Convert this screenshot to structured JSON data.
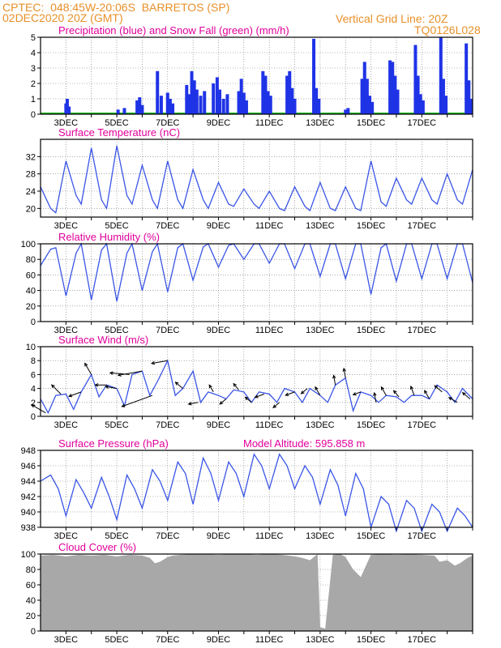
{
  "header": {
    "line1": "CPTEC:  048:45W-20:06S  BARRETOS (SP)",
    "line2": "02DEC2020 20Z (GMT)",
    "grid_note": "Vertical Grid Line: 20Z",
    "run_code": "TQ0126L028"
  },
  "colors": {
    "header_text": "#e8902a",
    "panel_title": "#e0009a",
    "series_line": "#3a55e6",
    "precip_bar": "#1f33e6",
    "snow_line": "#12b312",
    "cloud_fill": "#a8a8a8",
    "arrow": "#000000"
  },
  "chart_data": [
    {
      "id": "precip",
      "type": "bar",
      "title": "Precipitation (blue) and Snow Fall (green) (mm/h)",
      "ylim": [
        0,
        5
      ],
      "yticks": [
        0,
        1,
        2,
        3,
        4,
        5
      ],
      "x_unit": "days from 02DEC2020 20Z",
      "x_labels": [
        "3DEC",
        "5DEC",
        "7DEC",
        "9DEC",
        "11DEC",
        "13DEC",
        "15DEC",
        "17DEC"
      ],
      "snowfall": 0,
      "events": [
        {
          "day": 1.0,
          "value": 0.7
        },
        {
          "day": 1.05,
          "value": 1.0
        },
        {
          "day": 1.12,
          "value": 0.5
        },
        {
          "day": 3.05,
          "value": 0.3
        },
        {
          "day": 3.3,
          "value": 0.4
        },
        {
          "day": 3.8,
          "value": 0.9
        },
        {
          "day": 3.9,
          "value": 1.1
        },
        {
          "day": 4.0,
          "value": 0.6
        },
        {
          "day": 4.6,
          "value": 2.8
        },
        {
          "day": 4.75,
          "value": 1.2
        },
        {
          "day": 5.0,
          "value": 1.4
        },
        {
          "day": 5.1,
          "value": 1.0
        },
        {
          "day": 5.2,
          "value": 0.7
        },
        {
          "day": 5.75,
          "value": 1.9
        },
        {
          "day": 5.85,
          "value": 1.3
        },
        {
          "day": 5.95,
          "value": 2.8
        },
        {
          "day": 6.05,
          "value": 2.2
        },
        {
          "day": 6.15,
          "value": 1.6
        },
        {
          "day": 6.3,
          "value": 1.2
        },
        {
          "day": 6.45,
          "value": 1.5
        },
        {
          "day": 6.8,
          "value": 2.0
        },
        {
          "day": 6.95,
          "value": 2.4
        },
        {
          "day": 7.05,
          "value": 1.6
        },
        {
          "day": 7.2,
          "value": 1.0
        },
        {
          "day": 7.35,
          "value": 1.3
        },
        {
          "day": 7.8,
          "value": 1.5
        },
        {
          "day": 7.9,
          "value": 2.3
        },
        {
          "day": 8.0,
          "value": 1.4
        },
        {
          "day": 8.1,
          "value": 0.9
        },
        {
          "day": 8.75,
          "value": 2.8
        },
        {
          "day": 8.85,
          "value": 2.5
        },
        {
          "day": 8.95,
          "value": 1.5
        },
        {
          "day": 9.05,
          "value": 1.2
        },
        {
          "day": 9.7,
          "value": 2.5
        },
        {
          "day": 9.8,
          "value": 2.8
        },
        {
          "day": 9.9,
          "value": 1.7
        },
        {
          "day": 10.0,
          "value": 1.0
        },
        {
          "day": 10.75,
          "value": 4.9
        },
        {
          "day": 10.85,
          "value": 1.7
        },
        {
          "day": 10.95,
          "value": 1.0
        },
        {
          "day": 12.0,
          "value": 0.3
        },
        {
          "day": 12.1,
          "value": 0.4
        },
        {
          "day": 12.65,
          "value": 2.3
        },
        {
          "day": 12.75,
          "value": 3.4
        },
        {
          "day": 12.85,
          "value": 2.3
        },
        {
          "day": 12.95,
          "value": 1.2
        },
        {
          "day": 13.05,
          "value": 0.8
        },
        {
          "day": 13.75,
          "value": 3.5
        },
        {
          "day": 13.85,
          "value": 3.4
        },
        {
          "day": 13.95,
          "value": 2.5
        },
        {
          "day": 14.05,
          "value": 1.6
        },
        {
          "day": 14.75,
          "value": 4.5
        },
        {
          "day": 14.85,
          "value": 2.5
        },
        {
          "day": 14.95,
          "value": 1.3
        },
        {
          "day": 15.05,
          "value": 0.9
        },
        {
          "day": 15.75,
          "value": 5.0
        },
        {
          "day": 15.85,
          "value": 2.3
        },
        {
          "day": 15.95,
          "value": 1.2
        },
        {
          "day": 16.75,
          "value": 4.6
        },
        {
          "day": 16.85,
          "value": 2.2
        },
        {
          "day": 16.95,
          "value": 1.0
        }
      ]
    },
    {
      "id": "temperature",
      "type": "line",
      "title": "Surface Temperature (nC)",
      "ylim": [
        18,
        36
      ],
      "yticks": [
        20,
        24,
        28,
        32
      ],
      "x_unit": "days from 02DEC2020 20Z",
      "x_labels": [
        "3DEC",
        "5DEC",
        "7DEC",
        "9DEC",
        "11DEC",
        "13DEC",
        "15DEC",
        "17DEC"
      ],
      "x": [
        0.0,
        0.4,
        0.6,
        1.0,
        1.4,
        1.6,
        2.0,
        2.4,
        2.6,
        3.0,
        3.4,
        3.6,
        4.0,
        4.4,
        4.6,
        5.0,
        5.4,
        5.6,
        6.0,
        6.4,
        6.6,
        7.0,
        7.4,
        7.6,
        8.0,
        8.4,
        8.6,
        9.0,
        9.4,
        9.6,
        10.0,
        10.4,
        10.6,
        11.0,
        11.4,
        11.6,
        12.0,
        12.4,
        12.6,
        13.0,
        13.4,
        13.6,
        14.0,
        14.4,
        14.6,
        15.0,
        15.4,
        15.6,
        16.0,
        16.4,
        16.6,
        17.0
      ],
      "y": [
        25,
        20,
        19,
        31,
        23,
        21,
        34,
        22,
        20,
        34.5,
        23,
        21,
        30,
        22,
        20,
        31,
        22,
        20,
        29,
        22,
        20,
        26,
        21,
        20.5,
        24.5,
        21,
        20,
        24,
        20,
        19.5,
        25,
        20.5,
        19.5,
        26,
        20,
        19.5,
        25,
        20,
        19.5,
        31,
        21.5,
        20.5,
        27,
        22,
        21,
        27,
        22,
        21,
        28,
        22,
        21,
        29
      ]
    },
    {
      "id": "humidity",
      "type": "line",
      "title": "Relative Humidity (%)",
      "ylim": [
        0,
        100
      ],
      "yticks": [
        0,
        20,
        40,
        60,
        80,
        100
      ],
      "x_unit": "days from 02DEC2020 20Z",
      "x_labels": [
        "3DEC",
        "5DEC",
        "7DEC",
        "9DEC",
        "11DEC",
        "13DEC",
        "15DEC",
        "17DEC"
      ],
      "x": [
        0.0,
        0.4,
        0.6,
        1.0,
        1.4,
        1.6,
        2.0,
        2.4,
        2.6,
        3.0,
        3.4,
        3.6,
        4.0,
        4.4,
        4.6,
        5.0,
        5.4,
        5.6,
        6.0,
        6.4,
        6.6,
        7.0,
        7.4,
        7.6,
        8.0,
        8.4,
        8.6,
        9.0,
        9.4,
        9.6,
        10.0,
        10.4,
        10.6,
        11.0,
        11.4,
        11.6,
        12.0,
        12.4,
        12.6,
        13.0,
        13.4,
        13.6,
        14.0,
        14.4,
        14.6,
        15.0,
        15.4,
        15.6,
        16.0,
        16.4,
        16.6,
        17.0
      ],
      "y": [
        72,
        93,
        95,
        33,
        88,
        100,
        28,
        92,
        100,
        26,
        88,
        100,
        40,
        90,
        100,
        38,
        95,
        100,
        53,
        96,
        100,
        70,
        98,
        100,
        80,
        100,
        100,
        75,
        100,
        100,
        68,
        100,
        100,
        58,
        100,
        100,
        55,
        100,
        100,
        35,
        95,
        100,
        52,
        100,
        100,
        55,
        100,
        100,
        55,
        100,
        100,
        50
      ]
    },
    {
      "id": "wind",
      "type": "line",
      "title": "Surface Wind (m/s)",
      "ylim": [
        0,
        10
      ],
      "yticks": [
        0,
        2,
        4,
        6,
        8,
        10
      ],
      "x_unit": "days from 02DEC2020 20Z",
      "x_labels": [
        "3DEC",
        "5DEC",
        "7DEC",
        "9DEC",
        "11DEC",
        "13DEC",
        "15DEC",
        "17DEC"
      ],
      "x": [
        0.0,
        0.3,
        0.6,
        1.0,
        1.3,
        1.6,
        2.0,
        2.3,
        2.6,
        3.0,
        3.3,
        3.6,
        4.0,
        4.3,
        4.6,
        5.0,
        5.3,
        5.6,
        6.0,
        6.3,
        6.6,
        7.0,
        7.3,
        7.6,
        8.0,
        8.3,
        8.6,
        9.0,
        9.3,
        9.6,
        10.0,
        10.3,
        10.6,
        11.0,
        11.3,
        11.6,
        12.0,
        12.3,
        12.6,
        13.0,
        13.3,
        13.6,
        14.0,
        14.3,
        14.6,
        15.0,
        15.3,
        15.6,
        16.0,
        16.3,
        16.6,
        17.0
      ],
      "y": [
        2.5,
        0.5,
        3.0,
        3.2,
        1.0,
        3.5,
        6.0,
        2.8,
        4.5,
        4.0,
        1.5,
        6.0,
        6.5,
        3.0,
        5.0,
        8.0,
        3.0,
        4.0,
        6.5,
        2.0,
        3.5,
        3.0,
        2.5,
        3.8,
        3.5,
        2.0,
        3.5,
        3.2,
        2.0,
        4.0,
        3.5,
        2.0,
        4.0,
        3.0,
        2.0,
        4.5,
        5.5,
        0.8,
        3.5,
        3.0,
        2.0,
        3.0,
        2.8,
        2.0,
        3.0,
        3.0,
        2.5,
        4.5,
        3.5,
        2.0,
        4.0,
        2.5
      ],
      "arrows": [
        {
          "day": 0.2,
          "angle": -150,
          "len": 20
        },
        {
          "day": 0.8,
          "angle": -135,
          "len": 16
        },
        {
          "day": 1.6,
          "angle": 160,
          "len": 16
        },
        {
          "day": 2.0,
          "angle": -120,
          "len": 16
        },
        {
          "day": 2.6,
          "angle": 180,
          "len": 14
        },
        {
          "day": 3.0,
          "angle": -170,
          "len": 14
        },
        {
          "day": 3.5,
          "angle": -175,
          "len": 24
        },
        {
          "day": 4.0,
          "angle": 170,
          "len": 30
        },
        {
          "day": 4.4,
          "angle": 160,
          "len": 40
        },
        {
          "day": 5.0,
          "angle": 170,
          "len": 20
        },
        {
          "day": 5.6,
          "angle": -140,
          "len": 12
        },
        {
          "day": 6.2,
          "angle": 170,
          "len": 12
        },
        {
          "day": 6.8,
          "angle": -120,
          "len": 10
        },
        {
          "day": 7.3,
          "angle": 140,
          "len": 10
        },
        {
          "day": 7.8,
          "angle": -130,
          "len": 10
        },
        {
          "day": 8.3,
          "angle": -140,
          "len": 10
        },
        {
          "day": 8.8,
          "angle": 160,
          "len": 12
        },
        {
          "day": 9.4,
          "angle": 140,
          "len": 10
        },
        {
          "day": 10.0,
          "angle": 160,
          "len": 12
        },
        {
          "day": 10.5,
          "angle": 140,
          "len": 10
        },
        {
          "day": 11.0,
          "angle": -120,
          "len": 12
        },
        {
          "day": 11.6,
          "angle": -100,
          "len": 12
        },
        {
          "day": 12.0,
          "angle": -100,
          "len": 12
        },
        {
          "day": 12.6,
          "angle": 160,
          "len": 10
        },
        {
          "day": 13.2,
          "angle": -100,
          "len": 12
        },
        {
          "day": 13.6,
          "angle": -120,
          "len": 12
        },
        {
          "day": 14.1,
          "angle": -130,
          "len": 10
        },
        {
          "day": 14.7,
          "angle": -110,
          "len": 12
        },
        {
          "day": 15.3,
          "angle": -120,
          "len": 12
        },
        {
          "day": 15.8,
          "angle": -140,
          "len": 12
        },
        {
          "day": 16.4,
          "angle": -150,
          "len": 12
        },
        {
          "day": 16.9,
          "angle": -140,
          "len": 12
        }
      ]
    },
    {
      "id": "pressure",
      "type": "line",
      "title": "Surface Pressure (hPa)",
      "annotation": "Model Altitude: 595.858 m",
      "ylim": [
        938,
        948
      ],
      "yticks": [
        938,
        940,
        942,
        944,
        946,
        948
      ],
      "x_unit": "days from 02DEC2020 20Z",
      "x_labels": [
        "3DEC",
        "5DEC",
        "7DEC",
        "9DEC",
        "11DEC",
        "13DEC",
        "15DEC",
        "17DEC"
      ],
      "x": [
        0.0,
        0.4,
        0.7,
        1.0,
        1.4,
        1.7,
        2.0,
        2.4,
        2.7,
        3.0,
        3.4,
        3.7,
        4.0,
        4.4,
        4.7,
        5.0,
        5.4,
        5.7,
        6.0,
        6.4,
        6.7,
        7.0,
        7.4,
        7.7,
        8.0,
        8.4,
        8.7,
        9.0,
        9.4,
        9.7,
        10.0,
        10.4,
        10.7,
        11.0,
        11.4,
        11.7,
        12.0,
        12.4,
        12.7,
        13.0,
        13.4,
        13.7,
        14.0,
        14.4,
        14.7,
        15.0,
        15.4,
        15.7,
        16.0,
        16.4,
        16.7,
        17.0
      ],
      "y": [
        944,
        944.8,
        943,
        939.5,
        944.2,
        942.5,
        940.5,
        944.5,
        942,
        939,
        944.8,
        943,
        940.5,
        945.5,
        944,
        941.5,
        946.5,
        945,
        941,
        947,
        945,
        941.5,
        946.5,
        945,
        942,
        947.5,
        946,
        943,
        947.5,
        946,
        943,
        946,
        944.5,
        941,
        945.5,
        943.5,
        939.5,
        945,
        943,
        938,
        942,
        941,
        937.5,
        941.5,
        940.5,
        937.5,
        941,
        940,
        937.5,
        940.5,
        939.5,
        938
      ]
    },
    {
      "id": "cloud",
      "type": "area",
      "title": "Cloud Cover (%)",
      "ylim": [
        0,
        100
      ],
      "yticks": [
        0,
        20,
        40,
        60,
        80,
        100
      ],
      "x_unit": "days from 02DEC2020 20Z",
      "x_labels": [
        "3DEC",
        "5DEC",
        "7DEC",
        "9DEC",
        "11DEC",
        "13DEC",
        "15DEC",
        "17DEC"
      ],
      "x": [
        0.0,
        0.5,
        1.0,
        1.5,
        2.0,
        2.5,
        3.0,
        3.5,
        4.0,
        4.3,
        4.5,
        4.7,
        5.0,
        5.2,
        5.5,
        6.0,
        6.5,
        7.0,
        7.5,
        8.0,
        8.5,
        9.0,
        9.5,
        10.0,
        10.3,
        10.6,
        10.9,
        11.0,
        11.2,
        11.5,
        11.8,
        12.0,
        12.3,
        12.6,
        12.9,
        13.0,
        13.5,
        14.0,
        14.5,
        15.0,
        15.5,
        15.7,
        16.0,
        16.3,
        16.5,
        16.8,
        17.0
      ],
      "y": [
        98,
        99,
        97,
        99,
        98,
        99,
        97,
        99,
        98,
        95,
        88,
        90,
        96,
        98,
        99,
        100,
        100,
        99,
        100,
        100,
        99,
        100,
        99,
        97,
        95,
        92,
        100,
        5,
        3,
        99,
        100,
        96,
        80,
        70,
        92,
        99,
        100,
        99,
        100,
        99,
        98,
        90,
        92,
        85,
        88,
        95,
        98
      ]
    }
  ]
}
